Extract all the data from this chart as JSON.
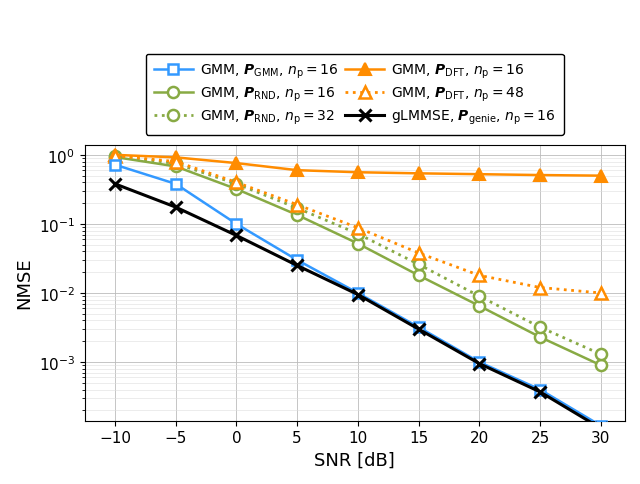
{
  "snr": [
    -10,
    -5,
    0,
    5,
    10,
    15,
    20,
    25,
    30
  ],
  "gmm_pgmm_16": [
    0.72,
    0.38,
    0.1,
    0.03,
    0.01,
    0.0032,
    0.001,
    0.0004,
    0.00012
  ],
  "gmm_prnd_16": [
    0.93,
    0.68,
    0.32,
    0.135,
    0.052,
    0.018,
    0.0065,
    0.0023,
    0.0009
  ],
  "gmm_prnd_32": [
    0.97,
    0.75,
    0.38,
    0.17,
    0.072,
    0.026,
    0.009,
    0.0032,
    0.0013
  ],
  "gmm_pdft_16": [
    1.0,
    0.92,
    0.76,
    0.6,
    0.56,
    0.54,
    0.525,
    0.51,
    0.5
  ],
  "gmm_pdft_48": [
    0.97,
    0.8,
    0.4,
    0.19,
    0.088,
    0.038,
    0.018,
    0.012,
    0.01
  ],
  "glmmse_pgenie_16": [
    0.38,
    0.175,
    0.068,
    0.025,
    0.0095,
    0.003,
    0.00095,
    0.00037,
    0.00011
  ],
  "color_blue": "#3399FF",
  "color_green": "#88AA44",
  "color_orange": "#FF8C00",
  "color_black": "#000000",
  "xlabel": "SNR [dB]",
  "ylabel": "NMSE",
  "legend_entries": [
    "GMM, $\\boldsymbol{P}_{\\mathrm{GMM}}$, $n_{\\mathrm{p}} = 16$",
    "GMM, $\\boldsymbol{P}_{\\mathrm{RND}}$, $n_{\\mathrm{p}} = 16$",
    "GMM, $\\boldsymbol{P}_{\\mathrm{RND}}$, $n_{\\mathrm{p}} = 32$",
    "GMM, $\\boldsymbol{P}_{\\mathrm{DFT}}$, $n_{\\mathrm{p}} = 16$",
    "GMM, $\\boldsymbol{P}_{\\mathrm{DFT}}$, $n_{\\mathrm{p}} = 48$",
    "gLMMSE, $\\boldsymbol{P}_{\\mathrm{genie}}$, $n_{\\mathrm{p}} = 16$"
  ]
}
